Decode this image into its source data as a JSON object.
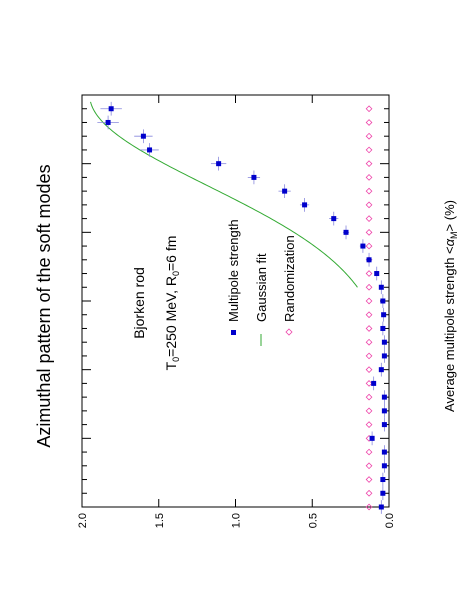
{
  "chart_data": {
    "type": "scatter",
    "title": "Azimuthal pattern of the soft modes",
    "annotations": {
      "line1": "Bjorken rod",
      "line2_parts": [
        "T",
        "0",
        "=250 MeV, R",
        "0",
        "=6 fm"
      ]
    },
    "ylabel_parts": [
      "Average multipole strength <",
      "α",
      "M",
      "> (%)"
    ],
    "xlabel": "",
    "yticks": [
      {
        "value": 2.0,
        "label": "2.0"
      },
      {
        "value": 1.5,
        "label": "1.5"
      },
      {
        "value": 1.0,
        "label": "1.0"
      },
      {
        "value": 0.5,
        "label": "0.5"
      },
      {
        "value": 0.0,
        "label": "0.0"
      }
    ],
    "ylim": [
      0,
      2.0
    ],
    "xlim": [
      0,
      30
    ],
    "xminor_ticks": 30,
    "legend": {
      "placement": "center",
      "entries": [
        {
          "label": "Multipole strength",
          "symbol": "square",
          "color": "#0000cc"
        },
        {
          "label": "Gaussian fit",
          "symbol": "line",
          "color": "#33aa33"
        },
        {
          "label": "Randomization",
          "symbol": "diamond",
          "color": "#ee44aa"
        }
      ]
    },
    "series": [
      {
        "name": "Multipole strength",
        "color": "#0000cc",
        "x": [
          1,
          2,
          3,
          4,
          5,
          6,
          7,
          8,
          9,
          10,
          11,
          12,
          13,
          14,
          15,
          16,
          17,
          18,
          19,
          20,
          21,
          22,
          23,
          24,
          25,
          26,
          27,
          28,
          29,
          30
        ],
        "y": [
          1.81,
          1.83,
          1.6,
          1.56,
          1.11,
          0.88,
          0.68,
          0.55,
          0.36,
          0.28,
          0.17,
          0.13,
          0.08,
          0.05,
          0.04,
          0.035,
          0.04,
          0.03,
          0.03,
          0.05,
          0.1,
          0.03,
          0.03,
          0.03,
          0.11,
          0.03,
          0.03,
          0.04,
          0.04,
          0.05
        ],
        "yerr": [
          0.07,
          0.07,
          0.06,
          0.06,
          0.05,
          0.04,
          0.04,
          0.03,
          0.03,
          0.02,
          0.02,
          0.02,
          0.01,
          0.01,
          0.01,
          0.01,
          0.01,
          0.01,
          0.01,
          0.01,
          0.01,
          0.01,
          0.01,
          0.01,
          0.01,
          0.01,
          0.01,
          0.01,
          0.01,
          0.01
        ],
        "xerr": 0.5
      },
      {
        "name": "Randomization",
        "color": "#ee44aa",
        "x": [
          1,
          2,
          3,
          4,
          5,
          6,
          7,
          8,
          9,
          10,
          11,
          12,
          13,
          14,
          15,
          16,
          17,
          18,
          19,
          20,
          21,
          22,
          23,
          24,
          25,
          26,
          27,
          28,
          29,
          30
        ],
        "y": [
          0.13,
          0.13,
          0.13,
          0.13,
          0.13,
          0.13,
          0.13,
          0.13,
          0.13,
          0.13,
          0.13,
          0.13,
          0.13,
          0.13,
          0.13,
          0.13,
          0.13,
          0.13,
          0.13,
          0.13,
          0.13,
          0.13,
          0.13,
          0.13,
          0.13,
          0.13,
          0.13,
          0.13,
          0.13,
          0.13
        ]
      }
    ],
    "fit": {
      "name": "Gaussian fit",
      "color": "#33aa33",
      "amplitude": 1.95,
      "sigma": 6.6,
      "x_range": [
        0.5,
        14
      ]
    }
  }
}
